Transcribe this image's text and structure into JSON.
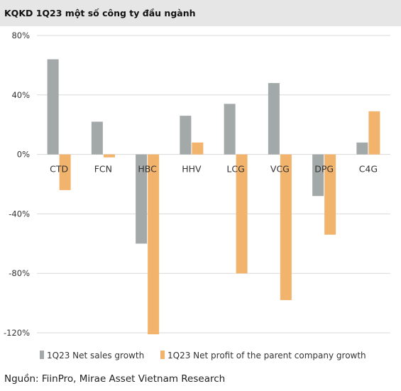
{
  "header": {
    "title": "KQKD 1Q23 một số công ty đầu ngành"
  },
  "chart_data": {
    "type": "bar",
    "title": "",
    "xlabel": "",
    "ylabel": "",
    "categories": [
      "CTD",
      "FCN",
      "HBC",
      "HHV",
      "LCG",
      "VCG",
      "DPG",
      "C4G"
    ],
    "series": [
      {
        "name": "1Q23 Net sales growth",
        "color": "#a3a9a8",
        "values": [
          64,
          22,
          -60,
          26,
          34,
          48,
          -28,
          8
        ]
      },
      {
        "name": "1Q23 Net profit of the parent company growth",
        "color": "#f2b36d",
        "values": [
          -24,
          -2,
          -121,
          8,
          -80,
          -98,
          -54,
          29
        ]
      }
    ],
    "ylim": [
      -120,
      80
    ],
    "yticks": [
      80,
      40,
      0,
      -40,
      -80,
      -120
    ],
    "ytick_labels": [
      "80%",
      "40%",
      "0%",
      "-40%",
      "-80%",
      "-120%"
    ],
    "grid": true,
    "legend": "bottom-left"
  },
  "source": "Nguồn: FiinPro, Mirae Asset Vietnam Research"
}
